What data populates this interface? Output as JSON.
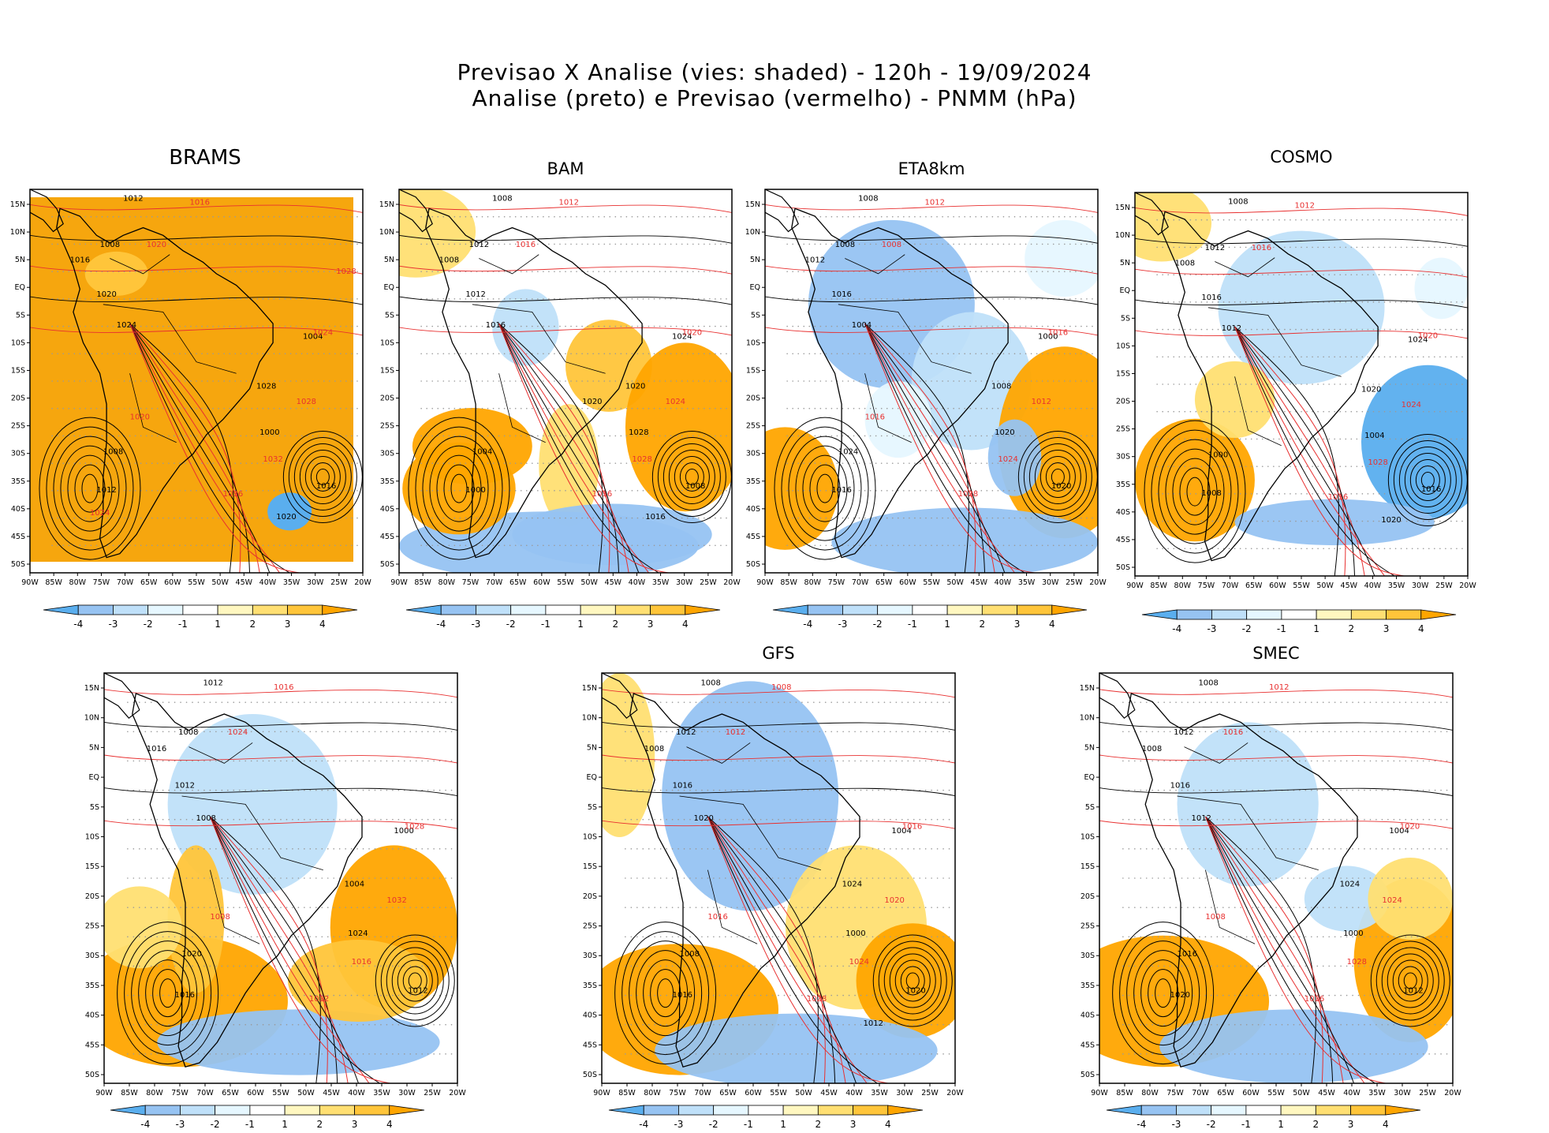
{
  "title": {
    "line1": "Previsao X Analise (vies: shaded) - 120h - 19/09/2024",
    "line2": "Analise (preto) e Previsao (vermelho) - PNMM (hPa)"
  },
  "lat_labels": [
    "15N",
    "10N",
    "5N",
    "EQ",
    "5S",
    "10S",
    "15S",
    "20S",
    "25S",
    "30S",
    "35S",
    "40S",
    "45S",
    "50S"
  ],
  "lon_labels": [
    "90W",
    "85W",
    "80W",
    "75W",
    "70W",
    "65W",
    "60W",
    "55W",
    "50W",
    "45W",
    "40W",
    "35W",
    "30W",
    "25W",
    "20W"
  ],
  "colorbar": {
    "labels": [
      "-4",
      "-3",
      "-2",
      "-1",
      "1",
      "2",
      "3",
      "4"
    ],
    "colors": [
      "#5aaeee",
      "#96c3f2",
      "#bfe0f9",
      "#e6f7ff",
      "#ffffff",
      "#fff7c0",
      "#ffdf72",
      "#ffc53a",
      "#ffa500"
    ]
  },
  "colors": {
    "analysis_contour": "#000000",
    "forecast_contour": "#e83030",
    "positive_bias": "#ffa500",
    "negative_bias": "#5aaeee",
    "grid_dots": "#9a9a9a"
  },
  "panels": [
    {
      "id": "brams",
      "title": "BRAMS",
      "isobars_black": [
        "1012",
        "1008",
        "1016",
        "1020",
        "1024",
        "1028",
        "1004",
        "1000",
        "1008",
        "1012",
        "1016",
        "1020"
      ],
      "isobars_red": [
        "1016",
        "1020",
        "1024",
        "1028",
        "1032",
        "1036",
        "1020",
        "1024",
        "1028"
      ]
    },
    {
      "id": "bam",
      "title": "BAM",
      "isobars_black": [
        "1008",
        "1012",
        "1008",
        "1012",
        "1016",
        "1020",
        "1024",
        "1028",
        "1004",
        "1000",
        "1008",
        "1016",
        "1020"
      ],
      "isobars_red": [
        "1012",
        "1016",
        "1020",
        "1024",
        "1028",
        "1016"
      ]
    },
    {
      "id": "eta8km",
      "title": "ETA8km",
      "isobars_black": [
        "1008",
        "1008",
        "1012",
        "1016",
        "1004",
        "1008",
        "1000",
        "1020",
        "1024",
        "1016",
        "1020"
      ],
      "isobars_red": [
        "1012",
        "1008",
        "1016",
        "1012",
        "1024",
        "1028",
        "1016"
      ]
    },
    {
      "id": "cosmo",
      "title": "COSMO",
      "isobars_black": [
        "1008",
        "1012",
        "1008",
        "1016",
        "1012",
        "1020",
        "1024",
        "1004",
        "1000",
        "1008",
        "1016",
        "1020"
      ],
      "isobars_red": [
        "1012",
        "1016",
        "1020",
        "1024",
        "1028",
        "1016"
      ]
    },
    {
      "id": "panel5",
      "title": "",
      "isobars_black": [
        "1012",
        "1008",
        "1016",
        "1012",
        "1008",
        "1004",
        "1000",
        "1024",
        "1020",
        "1016",
        "1012"
      ],
      "isobars_red": [
        "1016",
        "1024",
        "1028",
        "1032",
        "1016",
        "1012",
        "1008"
      ]
    },
    {
      "id": "gfs",
      "title": "GFS",
      "isobars_black": [
        "1008",
        "1012",
        "1008",
        "1016",
        "1020",
        "1024",
        "1004",
        "1000",
        "1008",
        "1016",
        "1020",
        "1012"
      ],
      "isobars_red": [
        "1008",
        "1012",
        "1016",
        "1020",
        "1024",
        "1028",
        "1016"
      ]
    },
    {
      "id": "smec",
      "title": "SMEC",
      "isobars_black": [
        "1008",
        "1012",
        "1008",
        "1016",
        "1012",
        "1024",
        "1004",
        "1000",
        "1016",
        "1020",
        "1012"
      ],
      "isobars_red": [
        "1012",
        "1016",
        "1020",
        "1024",
        "1028",
        "1016",
        "1008"
      ]
    }
  ]
}
